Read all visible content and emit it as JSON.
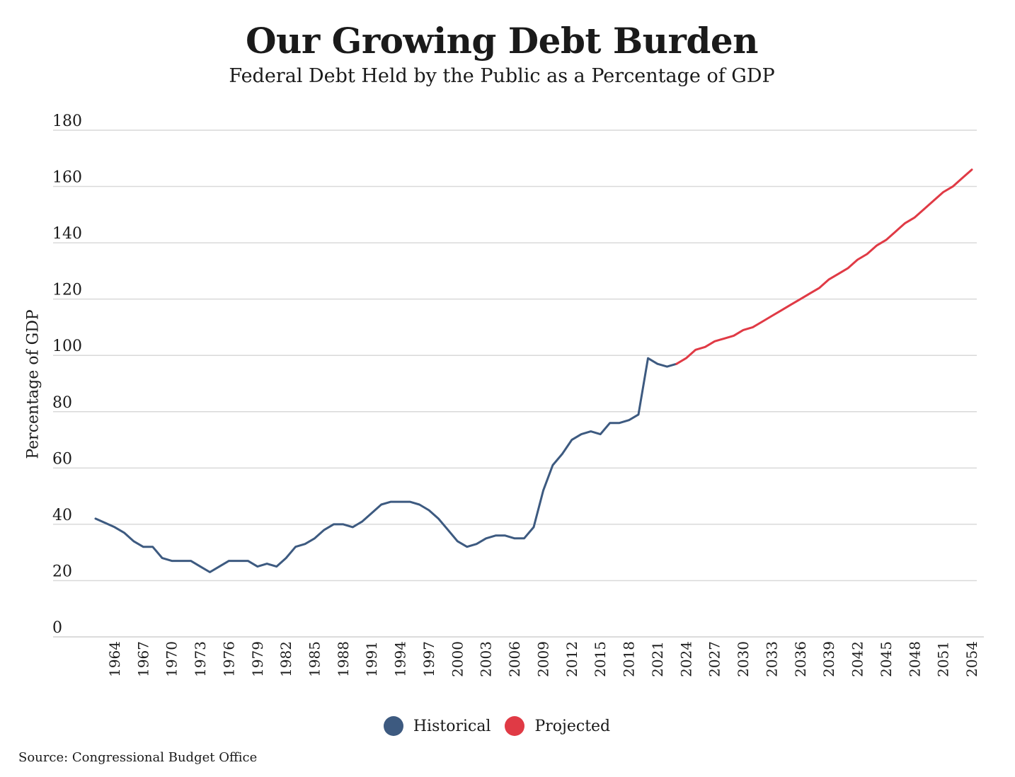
{
  "chart_data": {
    "type": "line",
    "title": "Our Growing Debt Burden",
    "subtitle": "Federal Debt Held by the Public as a Percentage of GDP",
    "ylabel": "Percentage of GDP",
    "xlabel": "",
    "ylim": [
      0,
      180
    ],
    "yticks": [
      0,
      20,
      40,
      60,
      80,
      100,
      120,
      140,
      160,
      180
    ],
    "xlim": [
      1962,
      2054
    ],
    "xticks": [
      1964,
      1967,
      1970,
      1973,
      1976,
      1979,
      1982,
      1985,
      1988,
      1991,
      1994,
      1997,
      2000,
      2003,
      2006,
      2009,
      2012,
      2015,
      2018,
      2021,
      2024,
      2027,
      2030,
      2033,
      2036,
      2039,
      2042,
      2045,
      2048,
      2051,
      2054
    ],
    "grid": true,
    "legend_position": "bottom-center",
    "series": [
      {
        "name": "Historical",
        "color": "#3d5a80",
        "x": [
          1962,
          1963,
          1964,
          1965,
          1966,
          1967,
          1968,
          1969,
          1970,
          1971,
          1972,
          1973,
          1974,
          1975,
          1976,
          1977,
          1978,
          1979,
          1980,
          1981,
          1982,
          1983,
          1984,
          1985,
          1986,
          1987,
          1988,
          1989,
          1990,
          1991,
          1992,
          1993,
          1994,
          1995,
          1996,
          1997,
          1998,
          1999,
          2000,
          2001,
          2002,
          2003,
          2004,
          2005,
          2006,
          2007,
          2008,
          2009,
          2010,
          2011,
          2012,
          2013,
          2014,
          2015,
          2016,
          2017,
          2018,
          2019,
          2020,
          2021,
          2022,
          2023
        ],
        "values": [
          42,
          40.5,
          39,
          37,
          34,
          32,
          32,
          28,
          27,
          27,
          27,
          25,
          23,
          25,
          27,
          27,
          27,
          25,
          26,
          25,
          28,
          32,
          33,
          35,
          38,
          40,
          40,
          39,
          41,
          44,
          47,
          48,
          48,
          48,
          47,
          45,
          42,
          38,
          34,
          32,
          33,
          35,
          36,
          36,
          35,
          35,
          39,
          52,
          61,
          65,
          70,
          72,
          73,
          72,
          76,
          76,
          77,
          79,
          99,
          97,
          96,
          97
        ]
      },
      {
        "name": "Projected",
        "color": "#e03a45",
        "x": [
          2023,
          2024,
          2025,
          2026,
          2027,
          2028,
          2029,
          2030,
          2031,
          2032,
          2033,
          2034,
          2035,
          2036,
          2037,
          2038,
          2039,
          2040,
          2041,
          2042,
          2043,
          2044,
          2045,
          2046,
          2047,
          2048,
          2049,
          2050,
          2051,
          2052,
          2053,
          2054
        ],
        "values": [
          97,
          99,
          102,
          103,
          105,
          106,
          107,
          109,
          110,
          112,
          114,
          116,
          118,
          120,
          122,
          124,
          127,
          129,
          131,
          134,
          136,
          139,
          141,
          144,
          147,
          149,
          152,
          155,
          158,
          160,
          163,
          166
        ]
      }
    ],
    "source": "Source: Congressional Budget Office"
  }
}
